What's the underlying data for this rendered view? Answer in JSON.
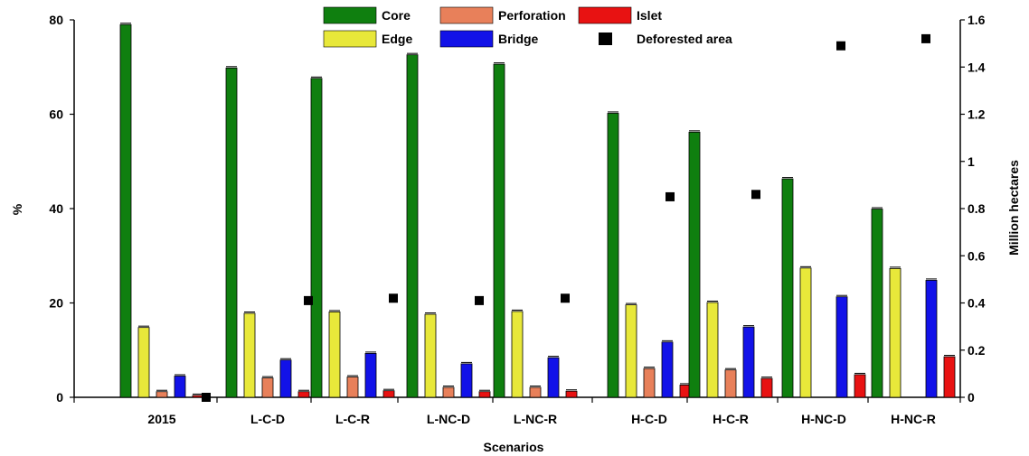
{
  "chart_data": {
    "type": "bar",
    "xlabel": "Scenarios",
    "ylabel": "%",
    "y2label": "Million hectares",
    "ylim": [
      0,
      80
    ],
    "y2lim": [
      0,
      1.6
    ],
    "yticks": [
      "0",
      "20",
      "40",
      "60",
      "80"
    ],
    "y2ticks": [
      "0",
      "0.2",
      "0.4",
      "0.6",
      "0.8",
      "1",
      "1.2",
      "1.4",
      "1.6"
    ],
    "categories": [
      "2015",
      "L-C-D",
      "L-C-R",
      "L-NC-D",
      "L-NC-R",
      "H-C-D",
      "H-C-R",
      "H-NC-D",
      "H-NC-R"
    ],
    "series": [
      {
        "name": "Core",
        "color": "#0f7f0f",
        "values": [
          79,
          69.8,
          67.6,
          72.6,
          70.6,
          60.2,
          56.2,
          46.3,
          39.9
        ]
      },
      {
        "name": "Edge",
        "color": "#e8e83a",
        "values": [
          14.8,
          17.8,
          18.1,
          17.6,
          18.2,
          19.6,
          20.1,
          27.4,
          27.3
        ]
      },
      {
        "name": "Perforation",
        "color": "#e8805a",
        "values": [
          1.2,
          4.1,
          4.3,
          2.1,
          2.1,
          6.1,
          5.8,
          0,
          0
        ]
      },
      {
        "name": "Bridge",
        "color": "#1212e8",
        "values": [
          4.5,
          7.9,
          9.3,
          7.1,
          8.4,
          11.7,
          14.9,
          21.3,
          24.8
        ]
      },
      {
        "name": "Islet",
        "color": "#e81212",
        "values": [
          0.4,
          1.2,
          1.4,
          1.2,
          1.3,
          2.6,
          4.0,
          4.8,
          8.6
        ]
      }
    ],
    "secondary_series": {
      "name": "Deforested area",
      "axis": "right",
      "marker": "square",
      "color": "#000000",
      "values": [
        0,
        0.41,
        0.42,
        0.41,
        0.42,
        0.85,
        0.86,
        1.49,
        1.52
      ]
    },
    "legend": {
      "position": "top",
      "rows": [
        [
          {
            "label": "Core",
            "color": "#0f7f0f"
          },
          {
            "label": "Perforation",
            "color": "#e8805a"
          },
          {
            "label": "Islet",
            "color": "#e81212"
          }
        ],
        [
          {
            "label": "Edge",
            "color": "#e8e83a"
          },
          {
            "label": "Bridge",
            "color": "#1212e8"
          },
          {
            "label": "Deforested area",
            "color": "#000000"
          }
        ]
      ]
    },
    "grid": false
  }
}
